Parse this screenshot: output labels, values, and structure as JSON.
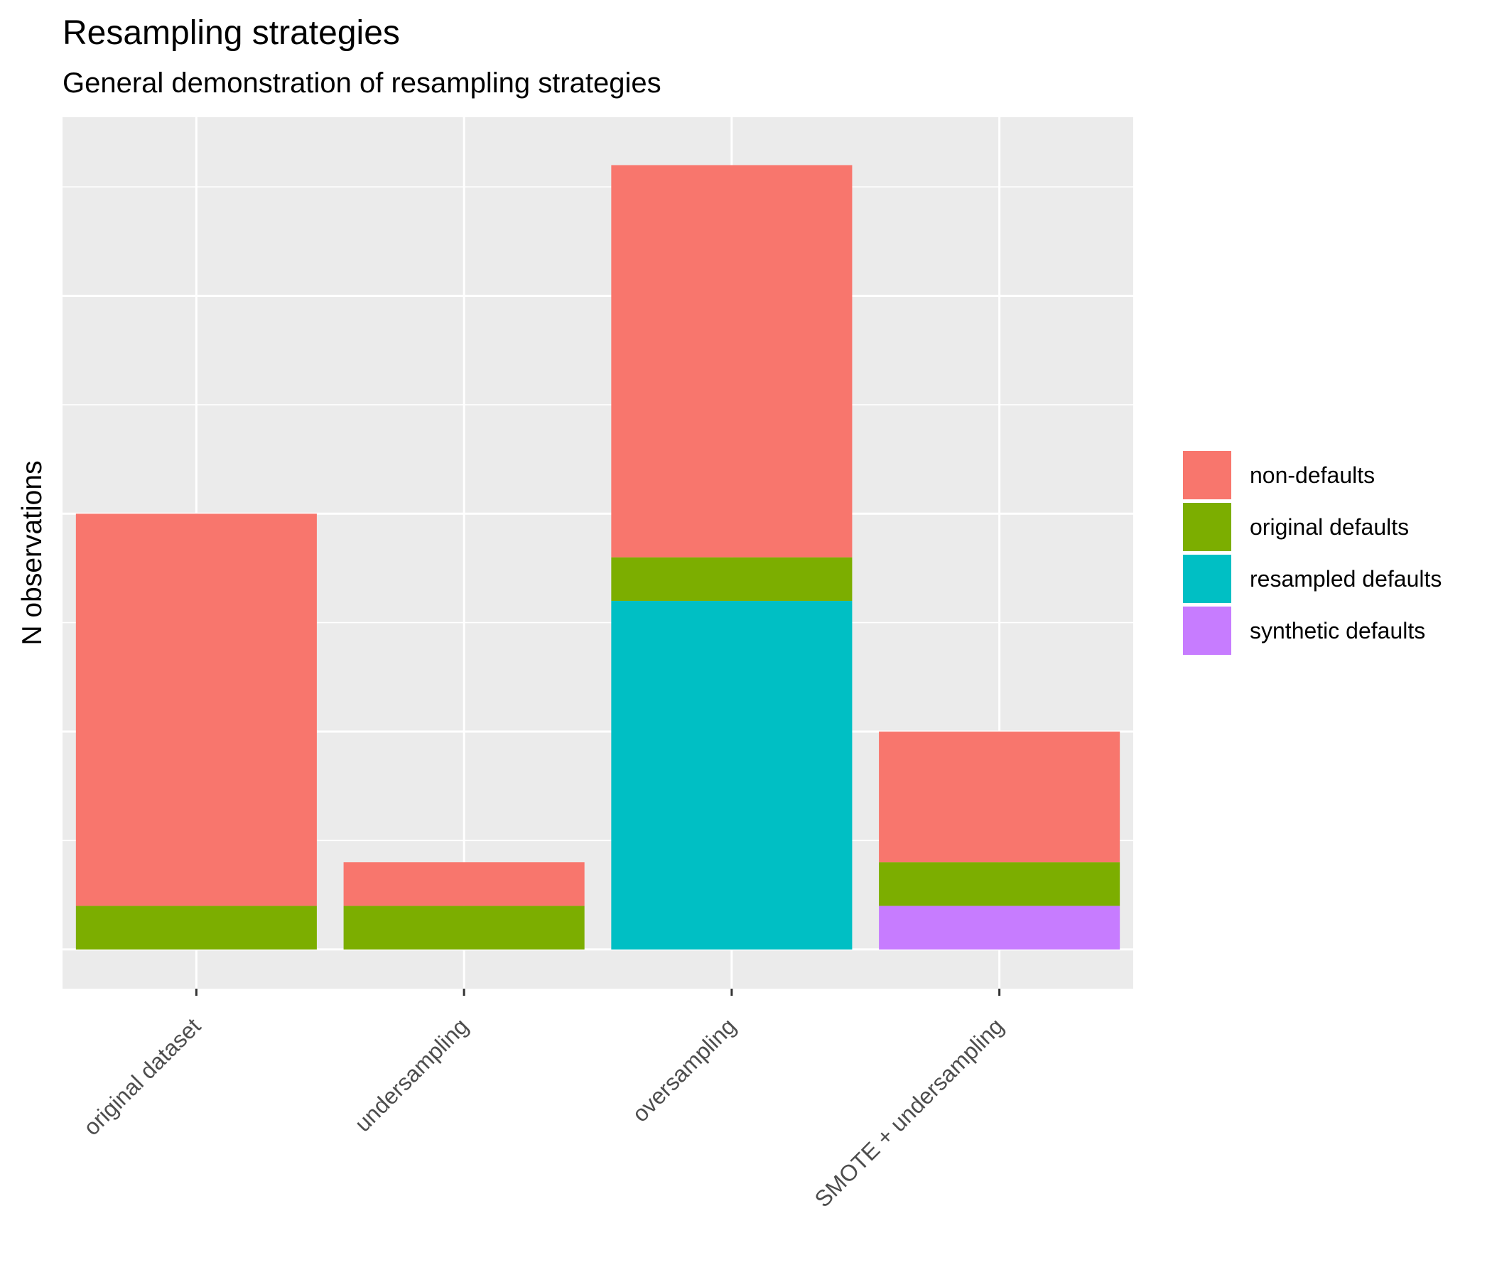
{
  "chart_data": {
    "type": "bar",
    "stacked": true,
    "title": "Resampling strategies",
    "subtitle": "General demonstration of resampling strategies",
    "xlabel": "",
    "ylabel": "N observations",
    "categories": [
      "original dataset",
      "undersampling",
      "oversampling",
      "SMOTE + undersampling"
    ],
    "series": [
      {
        "name": "synthetic defaults",
        "color": "#C77CFF",
        "values": [
          0,
          0,
          0,
          1
        ]
      },
      {
        "name": "resampled defaults",
        "color": "#00BFC4",
        "values": [
          0,
          0,
          8,
          0
        ]
      },
      {
        "name": "original defaults",
        "color": "#7CAE00",
        "values": [
          1,
          1,
          1,
          1
        ]
      },
      {
        "name": "non-defaults",
        "color": "#F8766D",
        "values": [
          9,
          1,
          9,
          3
        ]
      }
    ],
    "legend_order": [
      "non-defaults",
      "original defaults",
      "resampled defaults",
      "synthetic defaults"
    ],
    "ylim": [
      -0.9,
      19.1
    ],
    "yticks_major": [
      0,
      5,
      10,
      15
    ],
    "y_tick_labels_shown": false,
    "grid": true,
    "legend_position": "right",
    "x_tick_label_angle": -45,
    "panel_background": "#EBEBEB"
  }
}
